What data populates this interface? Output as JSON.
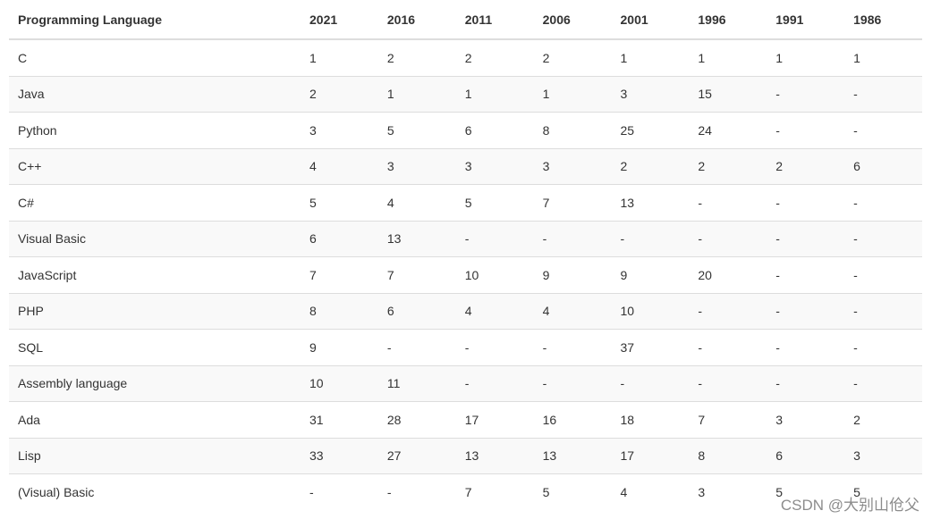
{
  "table": {
    "header": [
      "Programming Language",
      "2021",
      "2016",
      "2011",
      "2006",
      "2001",
      "1996",
      "1991",
      "1986"
    ],
    "rows": [
      [
        "C",
        "1",
        "2",
        "2",
        "2",
        "1",
        "1",
        "1",
        "1"
      ],
      [
        "Java",
        "2",
        "1",
        "1",
        "1",
        "3",
        "15",
        "-",
        "-"
      ],
      [
        "Python",
        "3",
        "5",
        "6",
        "8",
        "25",
        "24",
        "-",
        "-"
      ],
      [
        "C++",
        "4",
        "3",
        "3",
        "3",
        "2",
        "2",
        "2",
        "6"
      ],
      [
        "C#",
        "5",
        "4",
        "5",
        "7",
        "13",
        "-",
        "-",
        "-"
      ],
      [
        "Visual Basic",
        "6",
        "13",
        "-",
        "-",
        "-",
        "-",
        "-",
        "-"
      ],
      [
        "JavaScript",
        "7",
        "7",
        "10",
        "9",
        "9",
        "20",
        "-",
        "-"
      ],
      [
        "PHP",
        "8",
        "6",
        "4",
        "4",
        "10",
        "-",
        "-",
        "-"
      ],
      [
        "SQL",
        "9",
        "-",
        "-",
        "-",
        "37",
        "-",
        "-",
        "-"
      ],
      [
        "Assembly language",
        "10",
        "11",
        "-",
        "-",
        "-",
        "-",
        "-",
        "-"
      ],
      [
        "Ada",
        "31",
        "28",
        "17",
        "16",
        "18",
        "7",
        "3",
        "2"
      ],
      [
        "Lisp",
        "33",
        "27",
        "13",
        "13",
        "17",
        "8",
        "6",
        "3"
      ],
      [
        "(Visual) Basic",
        "-",
        "-",
        "7",
        "5",
        "4",
        "3",
        "5",
        "5"
      ]
    ]
  },
  "watermark": "CSDN @大别山伧父"
}
